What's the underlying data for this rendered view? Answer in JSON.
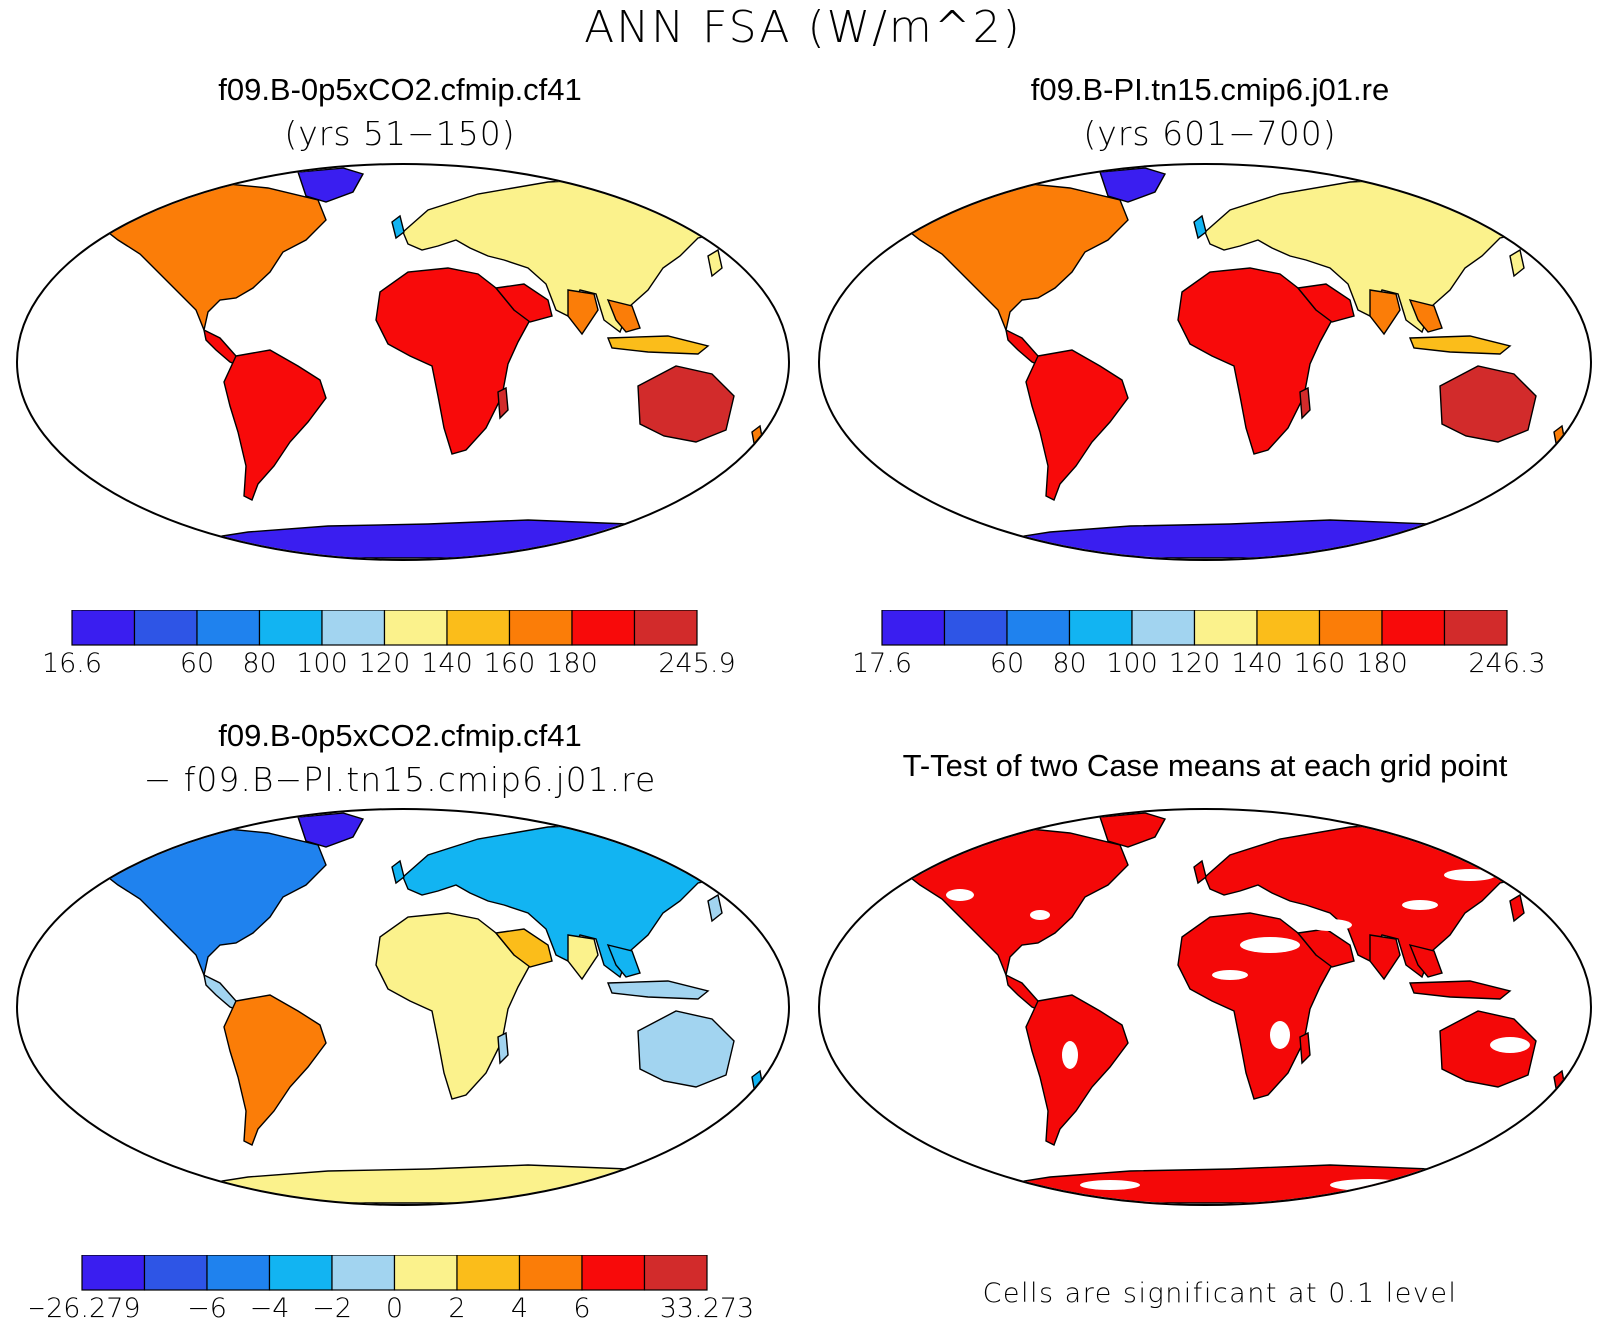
{
  "main_title": "ANN FSA (W/m^2)",
  "colors": {
    "scale": [
      "#3a1ef0",
      "#2e55e6",
      "#1f82ee",
      "#12b4f2",
      "#a2d4f0",
      "#fbf28c",
      "#fbbd1a",
      "#fb7d08",
      "#f80a0a",
      "#d22b2b"
    ],
    "outline": "#000000",
    "significant": "#f40808"
  },
  "panels": {
    "top_left": {
      "title": "f09.B-0p5xCO2.cfmip.cf41",
      "subtitle": "(yrs 51−150)",
      "colorbar": {
        "min_label": "16.6",
        "max_label": "245.9",
        "labels": [
          "16.6",
          "",
          "60",
          "80",
          "100",
          "120",
          "140",
          "160",
          "180",
          "",
          "245.9"
        ]
      }
    },
    "top_right": {
      "title": "f09.B-PI.tn15.cmip6.j01.re",
      "subtitle": "(yrs 601−700)",
      "colorbar": {
        "labels": [
          "17.6",
          "",
          "60",
          "80",
          "100",
          "120",
          "140",
          "160",
          "180",
          "",
          "246.3"
        ]
      }
    },
    "bottom_left": {
      "title": "f09.B-0p5xCO2.cfmip.cf41",
      "subtitle": "− f09.B−PI.tn15.cmip6.j01.re",
      "colorbar": {
        "labels": [
          "−26.279",
          "",
          "−6",
          "−4",
          "−2",
          "0",
          "2",
          "4",
          "6",
          "",
          "33.273"
        ]
      }
    },
    "bottom_right": {
      "title": "T-Test of two Case means at each grid point",
      "note": "Cells are significant at 0.1 level"
    }
  }
}
